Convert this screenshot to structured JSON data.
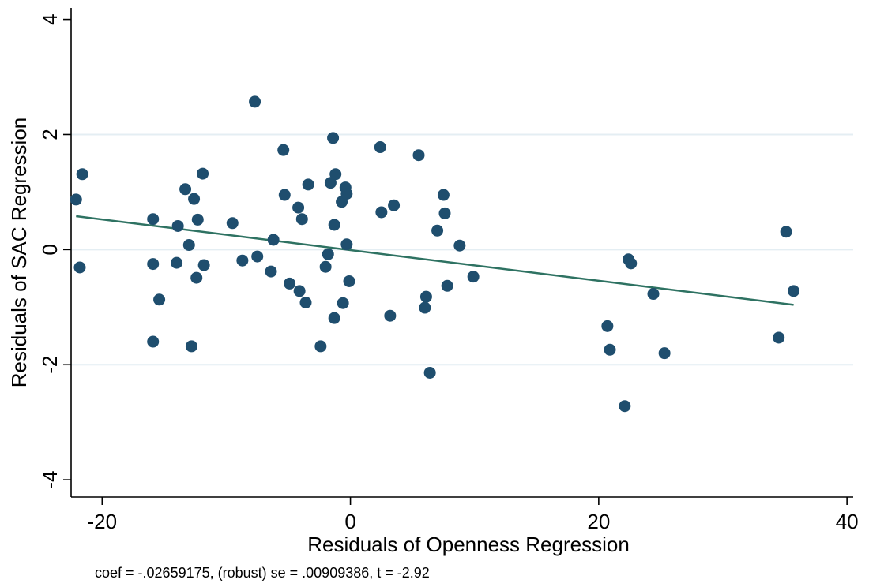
{
  "chart_data": {
    "type": "scatter",
    "title": "",
    "xlabel": "Residuals of Openness Regression",
    "ylabel": "Residuals of SAC Regression",
    "note": "coef = -.02659175, (robust) se = .00909386, t = -2.92",
    "xlim": [
      -22.5,
      40.5
    ],
    "ylim": [
      -4.3,
      4.2
    ],
    "x_ticks": [
      -20,
      0,
      20,
      40
    ],
    "x_tick_labels": [
      "-20",
      "0",
      "20",
      "40"
    ],
    "y_ticks": [
      -4,
      -2,
      0,
      2,
      4
    ],
    "y_tick_labels": [
      "-4",
      "-2",
      "0",
      "2",
      "4"
    ],
    "grid": "horizontal",
    "colors": {
      "points": "#1f4e6e",
      "fit_line": "#2e7262",
      "grid": "#e4eef3"
    },
    "points": {
      "x": [
        -22.1,
        -21.6,
        -21.8,
        -15.9,
        -15.9,
        -15.4,
        -15.9,
        -14.0,
        -13.9,
        -13.3,
        -13.0,
        -12.6,
        -12.3,
        -12.4,
        -11.9,
        -11.8,
        -12.8,
        -9.5,
        -8.7,
        -7.7,
        -7.5,
        -6.4,
        -6.2,
        -5.4,
        -5.3,
        -4.9,
        -4.2,
        -4.1,
        -3.9,
        -3.6,
        -3.4,
        -2.4,
        -2.0,
        -1.8,
        -1.6,
        -1.4,
        -1.3,
        -1.2,
        -1.3,
        -0.7,
        -0.6,
        -0.4,
        -0.3,
        -0.3,
        -0.1,
        2.4,
        2.5,
        3.2,
        3.5,
        5.5,
        6.0,
        6.1,
        6.4,
        7.0,
        7.5,
        7.6,
        7.8,
        8.8,
        9.9,
        20.7,
        20.9,
        22.1,
        22.4,
        22.6,
        24.4,
        25.3,
        34.5,
        35.1,
        35.7
      ],
      "y": [
        0.87,
        1.31,
        -0.31,
        0.53,
        -0.25,
        -0.87,
        -1.6,
        -0.23,
        0.41,
        1.05,
        0.08,
        0.88,
        0.52,
        -0.49,
        1.32,
        -0.27,
        -1.68,
        0.46,
        -0.19,
        2.57,
        -0.12,
        -0.38,
        0.17,
        1.73,
        0.95,
        -0.59,
        0.73,
        -0.72,
        0.53,
        -0.92,
        1.13,
        -1.68,
        -0.3,
        -0.08,
        1.16,
        1.94,
        -1.19,
        1.31,
        0.43,
        0.83,
        -0.93,
        1.08,
        0.97,
        0.09,
        -0.55,
        1.78,
        0.65,
        -1.15,
        0.77,
        1.64,
        -1.01,
        -0.82,
        -2.14,
        0.33,
        0.95,
        0.63,
        -0.63,
        0.07,
        -0.47,
        -1.33,
        -1.74,
        -2.72,
        -0.17,
        -0.24,
        -0.77,
        -1.8,
        -1.53,
        0.31,
        -0.72
      ]
    },
    "fit_line": {
      "x": [
        -22.1,
        35.7
      ],
      "y": [
        0.58,
        -0.96
      ]
    }
  }
}
